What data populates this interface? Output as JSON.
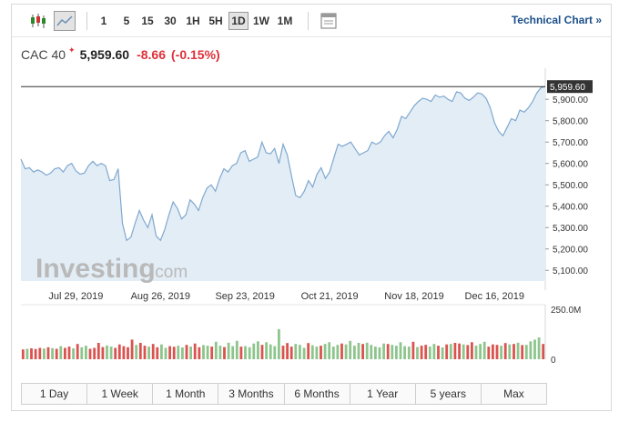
{
  "toolbar": {
    "candle_icon": "candlestick-icon",
    "line_icon": "line-chart-icon",
    "settings_icon": "chart-settings-icon",
    "intervals": [
      {
        "label": "1",
        "active": false
      },
      {
        "label": "5",
        "active": false
      },
      {
        "label": "15",
        "active": false
      },
      {
        "label": "30",
        "active": false
      },
      {
        "label": "1H",
        "active": false
      },
      {
        "label": "5H",
        "active": false
      },
      {
        "label": "1D",
        "active": true
      },
      {
        "label": "1W",
        "active": false
      },
      {
        "label": "1M",
        "active": false
      }
    ],
    "technical_chart_label": "Technical Chart »"
  },
  "quote": {
    "name": "CAC 40",
    "star": "✦",
    "price": "5,959.60",
    "change": "-8.66",
    "change_pct": "(-0.15%)"
  },
  "watermark": {
    "brand": "Investing",
    "suffix": ".com"
  },
  "colors": {
    "line": "#7fa8cf",
    "area": "#e3edf6",
    "up_volume": "#8dc58d",
    "down_volume": "#d9534f",
    "negative": "#e0303a",
    "link": "#1a4f8a"
  },
  "chart_data": {
    "type": "area",
    "series_name": "CAC 40",
    "ylim": [
      5050,
      6020
    ],
    "y_ticks": [
      "5,100.00",
      "5,200.00",
      "5,300.00",
      "5,400.00",
      "5,500.00",
      "5,600.00",
      "5,700.00",
      "5,800.00",
      "5,900.00"
    ],
    "y_tick_values": [
      5100,
      5200,
      5300,
      5400,
      5500,
      5600,
      5700,
      5800,
      5900
    ],
    "last_price_label": "5,959.60",
    "last_price": 5959.6,
    "x_labels": [
      "Jul 29, 2019",
      "Aug 26, 2019",
      "Sep 23, 2019",
      "Oct 21, 2019",
      "Nov 18, 2019",
      "Dec 16, 2019"
    ],
    "x_label_index": [
      13,
      33,
      53,
      73,
      93,
      112
    ],
    "values": [
      5620,
      5575,
      5580,
      5560,
      5570,
      5560,
      5545,
      5555,
      5575,
      5580,
      5560,
      5590,
      5600,
      5565,
      5550,
      5555,
      5590,
      5610,
      5590,
      5600,
      5590,
      5520,
      5525,
      5575,
      5320,
      5240,
      5255,
      5320,
      5380,
      5335,
      5300,
      5360,
      5260,
      5240,
      5290,
      5360,
      5420,
      5390,
      5340,
      5360,
      5430,
      5410,
      5380,
      5440,
      5485,
      5500,
      5470,
      5530,
      5575,
      5560,
      5590,
      5600,
      5650,
      5660,
      5610,
      5620,
      5630,
      5700,
      5650,
      5645,
      5670,
      5600,
      5690,
      5640,
      5540,
      5450,
      5440,
      5470,
      5520,
      5490,
      5550,
      5580,
      5530,
      5560,
      5625,
      5690,
      5680,
      5690,
      5700,
      5670,
      5640,
      5650,
      5660,
      5700,
      5690,
      5700,
      5730,
      5750,
      5720,
      5760,
      5820,
      5810,
      5840,
      5870,
      5890,
      5905,
      5900,
      5890,
      5920,
      5910,
      5915,
      5900,
      5890,
      5935,
      5930,
      5905,
      5895,
      5910,
      5930,
      5925,
      5905,
      5860,
      5790,
      5750,
      5730,
      5770,
      5810,
      5800,
      5850,
      5840,
      5860,
      5890,
      5930,
      5955,
      5959.6
    ],
    "volume_axis_label": "250.0M",
    "volume_zero_label": "0",
    "volume_max": 250,
    "volume_values": [
      45,
      48,
      50,
      47,
      52,
      49,
      55,
      51,
      48,
      60,
      52,
      58,
      50,
      70,
      55,
      62,
      48,
      52,
      75,
      56,
      63,
      58,
      52,
      68,
      60,
      55,
      90,
      66,
      75,
      62,
      58,
      70,
      55,
      68,
      52,
      60,
      57,
      62,
      54,
      66,
      58,
      72,
      55,
      65,
      62,
      58,
      80,
      62,
      56,
      76,
      60,
      84,
      58,
      60,
      55,
      72,
      82,
      66,
      78,
      68,
      60,
      138,
      62,
      74,
      58,
      70,
      66,
      52,
      74,
      64,
      58,
      62,
      70,
      78,
      58,
      66,
      72,
      68,
      84,
      62,
      75,
      70,
      76,
      66,
      58,
      54,
      72,
      70,
      66,
      62,
      78,
      60,
      58,
      80,
      56,
      62,
      66,
      58,
      70,
      62,
      54,
      68,
      70,
      75,
      72,
      68,
      65,
      78,
      62,
      70,
      80,
      58,
      68,
      66,
      62,
      74,
      68,
      70,
      76,
      65,
      66,
      82,
      90,
      100,
      70
    ],
    "volume_up": [
      false,
      true,
      false,
      false,
      false,
      true,
      false,
      true,
      false,
      true,
      false,
      false,
      true,
      false,
      true,
      true,
      false,
      false,
      false,
      false,
      true,
      true,
      false,
      false,
      false,
      false,
      false,
      true,
      false,
      false,
      true,
      false,
      false,
      true,
      true,
      false,
      false,
      true,
      true,
      false,
      true,
      false,
      false,
      true,
      true,
      false,
      true,
      true,
      false,
      true,
      true,
      true,
      false,
      true,
      true,
      true,
      true,
      false,
      true,
      true,
      true,
      true,
      false,
      false,
      false,
      true,
      true,
      true,
      false,
      true,
      true,
      false,
      true,
      true,
      true,
      true,
      false,
      true,
      true,
      true,
      true,
      false,
      true,
      true,
      true,
      true,
      true,
      false,
      true,
      true,
      true,
      true,
      true,
      false,
      true,
      false,
      false,
      true,
      true,
      false,
      true,
      false,
      true,
      false,
      false,
      true,
      false,
      false,
      true,
      true,
      true,
      false,
      false,
      false,
      true,
      false,
      true,
      false,
      true,
      false,
      true,
      true,
      true,
      true,
      false
    ]
  },
  "periods": [
    "1 Day",
    "1 Week",
    "1 Month",
    "3 Months",
    "6 Months",
    "1 Year",
    "5 years",
    "Max"
  ]
}
